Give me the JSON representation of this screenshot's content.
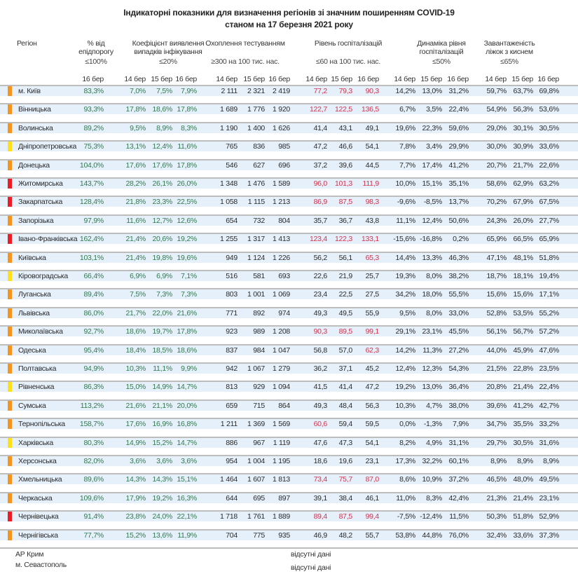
{
  "title": {
    "line1": "Індикаторні показники для визначення регіонів зі значним поширенням COVID-19",
    "line2": "станом на 17 березня 2021 року"
  },
  "headers": {
    "region": "Регіон",
    "epid": {
      "line1": "% від",
      "line2": "епідпорогу",
      "threshold": "≤100%"
    },
    "coef": {
      "line1": "Коефіцієнт виявлення",
      "line2": "випадків інфікування",
      "threshold": "≤20%"
    },
    "test": {
      "line1": "Охоплення тестуванням",
      "threshold": "≥300 на 100 тис. нас."
    },
    "hosp": {
      "line1": "Рівень госпіталізацій",
      "threshold": "≤60 на 100 тис. нас."
    },
    "dyn": {
      "line1": "Динаміка рівня",
      "line2": "госпіталізацій",
      "threshold": "≤50%"
    },
    "beds": {
      "line1": "Завантаженість",
      "line2": "ліжок з киснем",
      "threshold": "≤65%"
    },
    "dates3": [
      "14 бер",
      "15 бер",
      "16 бер"
    ],
    "date1": "16 бер"
  },
  "colors": {
    "orange": "#f7941d",
    "yellow": "#ffe01a",
    "red": "#ed1c24",
    "hosp_alert": "#d0344f",
    "ok_green": "#2f7a4e"
  },
  "rows": [
    {
      "region": "м. Київ",
      "level": "orange",
      "epid": "83,3%",
      "coef": [
        "7,0%",
        "7,5%",
        "7,9%"
      ],
      "test": [
        "2 111",
        "2 321",
        "2 419"
      ],
      "hosp": [
        "77,2",
        "79,3",
        "90,3"
      ],
      "dyn": [
        "14,2%",
        "13,0%",
        "31,2%"
      ],
      "beds": [
        "59,7%",
        "63,7%",
        "69,8%"
      ]
    },
    {
      "region": "Вінницька",
      "level": "orange",
      "epid": "93,3%",
      "coef": [
        "17,8%",
        "18,6%",
        "17,8%"
      ],
      "test": [
        "1 689",
        "1 776",
        "1 920"
      ],
      "hosp": [
        "122,7",
        "122,5",
        "136,5"
      ],
      "dyn": [
        "6,7%",
        "3,5%",
        "22,4%"
      ],
      "beds": [
        "54,9%",
        "56,3%",
        "53,6%"
      ]
    },
    {
      "region": "Волинська",
      "level": "orange",
      "epid": "89,2%",
      "coef": [
        "9,5%",
        "8,9%",
        "8,3%"
      ],
      "test": [
        "1 190",
        "1 400",
        "1 626"
      ],
      "hosp": [
        "41,4",
        "43,1",
        "49,1"
      ],
      "dyn": [
        "19,6%",
        "22,3%",
        "59,6%"
      ],
      "beds": [
        "29,0%",
        "30,1%",
        "30,5%"
      ]
    },
    {
      "region": "Дніпропетровська",
      "level": "yellow",
      "epid": "75,3%",
      "coef": [
        "13,1%",
        "12,4%",
        "11,6%"
      ],
      "test": [
        "765",
        "836",
        "985"
      ],
      "hosp": [
        "47,2",
        "46,6",
        "54,1"
      ],
      "dyn": [
        "7,8%",
        "3,4%",
        "29,9%"
      ],
      "beds": [
        "30,0%",
        "30,9%",
        "33,6%"
      ]
    },
    {
      "region": "Донецька",
      "level": "orange",
      "epid": "104,0%",
      "coef": [
        "17,6%",
        "17,6%",
        "17,8%"
      ],
      "test": [
        "546",
        "627",
        "696"
      ],
      "hosp": [
        "37,2",
        "39,6",
        "44,5"
      ],
      "dyn": [
        "7,7%",
        "17,4%",
        "41,2%"
      ],
      "beds": [
        "20,7%",
        "21,7%",
        "22,6%"
      ]
    },
    {
      "region": "Житомирська",
      "level": "red",
      "epid": "143,7%",
      "coef": [
        "28,2%",
        "26,1%",
        "26,0%"
      ],
      "test": [
        "1 348",
        "1 476",
        "1 589"
      ],
      "hosp": [
        "96,0",
        "101,3",
        "111,9"
      ],
      "dyn": [
        "10,0%",
        "15,1%",
        "35,1%"
      ],
      "beds": [
        "58,6%",
        "62,9%",
        "63,2%"
      ]
    },
    {
      "region": "Закарпатська",
      "level": "red",
      "epid": "128,4%",
      "coef": [
        "21,8%",
        "23,3%",
        "22,5%"
      ],
      "test": [
        "1 058",
        "1 115",
        "1 213"
      ],
      "hosp": [
        "86,9",
        "87,5",
        "98,3"
      ],
      "dyn": [
        "-9,6%",
        "-8,5%",
        "13,7%"
      ],
      "beds": [
        "70,2%",
        "67,9%",
        "67,5%"
      ]
    },
    {
      "region": "Запорізька",
      "level": "orange",
      "epid": "97,9%",
      "coef": [
        "11,6%",
        "12,7%",
        "12,6%"
      ],
      "test": [
        "654",
        "732",
        "804"
      ],
      "hosp": [
        "35,7",
        "36,7",
        "43,8"
      ],
      "dyn": [
        "11,1%",
        "12,4%",
        "50,6%"
      ],
      "beds": [
        "24,3%",
        "26,0%",
        "27,7%"
      ]
    },
    {
      "region": "Івано-Франківська",
      "level": "red",
      "epid": "162,4%",
      "coef": [
        "21,4%",
        "20,6%",
        "19,2%"
      ],
      "test": [
        "1 255",
        "1 317",
        "1 413"
      ],
      "hosp": [
        "123,4",
        "122,3",
        "133,1"
      ],
      "dyn": [
        "-15,6%",
        "-16,8%",
        "0,2%"
      ],
      "beds": [
        "65,9%",
        "66,5%",
        "65,9%"
      ]
    },
    {
      "region": "Київська",
      "level": "orange",
      "epid": "103,1%",
      "coef": [
        "21,4%",
        "19,8%",
        "19,6%"
      ],
      "test": [
        "949",
        "1 124",
        "1 226"
      ],
      "hosp": [
        "56,2",
        "56,1",
        "65,3"
      ],
      "dyn": [
        "14,4%",
        "13,3%",
        "46,3%"
      ],
      "beds": [
        "47,1%",
        "48,1%",
        "51,8%"
      ]
    },
    {
      "region": "Кіровоградська",
      "level": "yellow",
      "epid": "66,4%",
      "coef": [
        "6,9%",
        "6,9%",
        "7,1%"
      ],
      "test": [
        "516",
        "581",
        "693"
      ],
      "hosp": [
        "22,6",
        "21,9",
        "25,7"
      ],
      "dyn": [
        "19,3%",
        "8,0%",
        "38,2%"
      ],
      "beds": [
        "18,7%",
        "18,1%",
        "19,4%"
      ]
    },
    {
      "region": "Луганська",
      "level": "orange",
      "epid": "89,4%",
      "coef": [
        "7,5%",
        "7,3%",
        "7,3%"
      ],
      "test": [
        "803",
        "1 001",
        "1 069"
      ],
      "hosp": [
        "23,4",
        "22,5",
        "27,5"
      ],
      "dyn": [
        "34,2%",
        "18,0%",
        "55,5%"
      ],
      "beds": [
        "15,6%",
        "15,6%",
        "17,1%"
      ]
    },
    {
      "region": "Львівська",
      "level": "orange",
      "epid": "86,0%",
      "coef": [
        "21,7%",
        "22,0%",
        "21,6%"
      ],
      "test": [
        "771",
        "892",
        "974"
      ],
      "hosp": [
        "49,3",
        "49,5",
        "55,9"
      ],
      "dyn": [
        "9,5%",
        "8,0%",
        "33,0%"
      ],
      "beds": [
        "52,8%",
        "53,5%",
        "55,2%"
      ]
    },
    {
      "region": "Миколаївська",
      "level": "orange",
      "epid": "92,7%",
      "coef": [
        "18,6%",
        "19,7%",
        "17,8%"
      ],
      "test": [
        "923",
        "989",
        "1 208"
      ],
      "hosp": [
        "90,3",
        "89,5",
        "99,1"
      ],
      "dyn": [
        "29,1%",
        "23,1%",
        "45,5%"
      ],
      "beds": [
        "56,1%",
        "56,7%",
        "57,2%"
      ]
    },
    {
      "region": "Одеська",
      "level": "orange",
      "epid": "95,4%",
      "coef": [
        "18,4%",
        "18,5%",
        "18,6%"
      ],
      "test": [
        "837",
        "984",
        "1 047"
      ],
      "hosp": [
        "56,8",
        "57,0",
        "62,3"
      ],
      "dyn": [
        "14,2%",
        "11,3%",
        "27,2%"
      ],
      "beds": [
        "44,0%",
        "45,9%",
        "47,6%"
      ]
    },
    {
      "region": "Полтавська",
      "level": "orange",
      "epid": "94,9%",
      "coef": [
        "10,3%",
        "11,1%",
        "9,9%"
      ],
      "test": [
        "942",
        "1 067",
        "1 279"
      ],
      "hosp": [
        "36,2",
        "37,1",
        "45,2"
      ],
      "dyn": [
        "12,4%",
        "12,3%",
        "54,3%"
      ],
      "beds": [
        "21,5%",
        "22,8%",
        "23,5%"
      ]
    },
    {
      "region": "Рівненська",
      "level": "yellow",
      "epid": "86,3%",
      "coef": [
        "15,0%",
        "14,9%",
        "14,7%"
      ],
      "test": [
        "813",
        "929",
        "1 094"
      ],
      "hosp": [
        "41,5",
        "41,4",
        "47,2"
      ],
      "dyn": [
        "19,2%",
        "13,0%",
        "36,4%"
      ],
      "beds": [
        "20,8%",
        "21,4%",
        "22,4%"
      ]
    },
    {
      "region": "Сумська",
      "level": "orange",
      "epid": "113,2%",
      "coef": [
        "21,6%",
        "21,1%",
        "20,0%"
      ],
      "test": [
        "659",
        "715",
        "864"
      ],
      "hosp": [
        "49,3",
        "48,4",
        "56,3"
      ],
      "dyn": [
        "10,3%",
        "4,7%",
        "38,0%"
      ],
      "beds": [
        "39,6%",
        "41,2%",
        "42,7%"
      ]
    },
    {
      "region": "Тернопільська",
      "level": "orange",
      "epid": "158,7%",
      "coef": [
        "17,6%",
        "16,9%",
        "16,8%"
      ],
      "test": [
        "1 211",
        "1 369",
        "1 569"
      ],
      "hosp": [
        "60,6",
        "59,4",
        "59,5"
      ],
      "dyn": [
        "0,0%",
        "-1,3%",
        "7,9%"
      ],
      "beds": [
        "34,7%",
        "35,5%",
        "33,2%"
      ]
    },
    {
      "region": "Харківська",
      "level": "yellow",
      "epid": "80,3%",
      "coef": [
        "14,9%",
        "15,2%",
        "14,7%"
      ],
      "test": [
        "886",
        "967",
        "1 119"
      ],
      "hosp": [
        "47,6",
        "47,3",
        "54,1"
      ],
      "dyn": [
        "8,2%",
        "4,9%",
        "31,1%"
      ],
      "beds": [
        "29,7%",
        "30,5%",
        "31,6%"
      ]
    },
    {
      "region": "Херсонська",
      "level": "orange",
      "epid": "82,0%",
      "coef": [
        "3,6%",
        "3,6%",
        "3,6%"
      ],
      "test": [
        "954",
        "1 004",
        "1 195"
      ],
      "hosp": [
        "18,6",
        "19,6",
        "23,1"
      ],
      "dyn": [
        "17,3%",
        "32,2%",
        "60,1%"
      ],
      "beds": [
        "8,9%",
        "8,9%",
        "8,9%"
      ]
    },
    {
      "region": "Хмельницька",
      "level": "orange",
      "epid": "89,6%",
      "coef": [
        "14,3%",
        "14,3%",
        "15,1%"
      ],
      "test": [
        "1 464",
        "1 607",
        "1 813"
      ],
      "hosp": [
        "73,4",
        "75,7",
        "87,0"
      ],
      "dyn": [
        "8,6%",
        "10,9%",
        "37,2%"
      ],
      "beds": [
        "46,5%",
        "48,0%",
        "49,5%"
      ]
    },
    {
      "region": "Черкаська",
      "level": "orange",
      "epid": "109,6%",
      "coef": [
        "17,9%",
        "19,2%",
        "16,3%"
      ],
      "test": [
        "644",
        "695",
        "897"
      ],
      "hosp": [
        "39,1",
        "38,4",
        "46,1"
      ],
      "dyn": [
        "11,0%",
        "8,3%",
        "42,4%"
      ],
      "beds": [
        "21,3%",
        "21,4%",
        "23,1%"
      ]
    },
    {
      "region": "Чернівецька",
      "level": "red",
      "epid": "91,4%",
      "coef": [
        "23,8%",
        "24,0%",
        "22,1%"
      ],
      "test": [
        "1 718",
        "1 761",
        "1 889"
      ],
      "hosp": [
        "89,4",
        "87,5",
        "99,4"
      ],
      "dyn": [
        "-7,5%",
        "-12,4%",
        "11,5%"
      ],
      "beds": [
        "50,3%",
        "51,8%",
        "52,9%"
      ]
    },
    {
      "region": "Чернігівська",
      "level": "orange",
      "epid": "77,7%",
      "coef": [
        "15,2%",
        "13,6%",
        "11,9%"
      ],
      "test": [
        "704",
        "775",
        "935"
      ],
      "hosp": [
        "46,9",
        "48,2",
        "55,7"
      ],
      "dyn": [
        "53,8%",
        "44,8%",
        "76,0%"
      ],
      "beds": [
        "32,4%",
        "33,6%",
        "37,3%"
      ]
    }
  ],
  "footer": {
    "missing": [
      {
        "region": "АР Крим",
        "note": "відсутні дані"
      },
      {
        "region": "м. Севастополь",
        "note": "відсутні дані"
      }
    ]
  }
}
